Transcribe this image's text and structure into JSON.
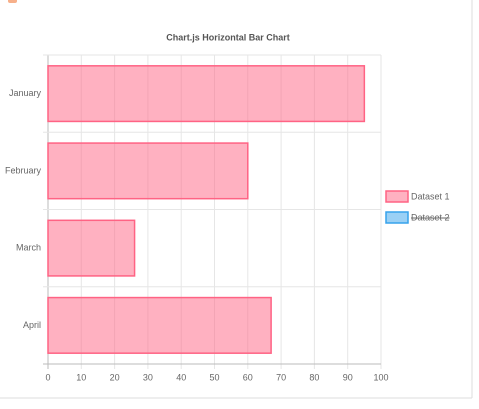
{
  "chart_data": {
    "type": "horizontal-bar",
    "title": "Chart.js Horizontal Bar Chart",
    "categories": [
      "January",
      "February",
      "March",
      "April"
    ],
    "series": [
      {
        "name": "Dataset 1",
        "color": "#ff6384",
        "values": [
          95,
          60,
          26,
          67
        ],
        "hidden": false
      },
      {
        "name": "Dataset 2",
        "color": "#36a2eb",
        "values": [
          null,
          null,
          null,
          null
        ],
        "hidden": true
      }
    ],
    "xlim": [
      0,
      100
    ],
    "xticks": [
      0,
      10,
      20,
      30,
      40,
      50,
      60,
      70,
      80,
      90,
      100
    ],
    "grid": true,
    "legend": "right"
  }
}
